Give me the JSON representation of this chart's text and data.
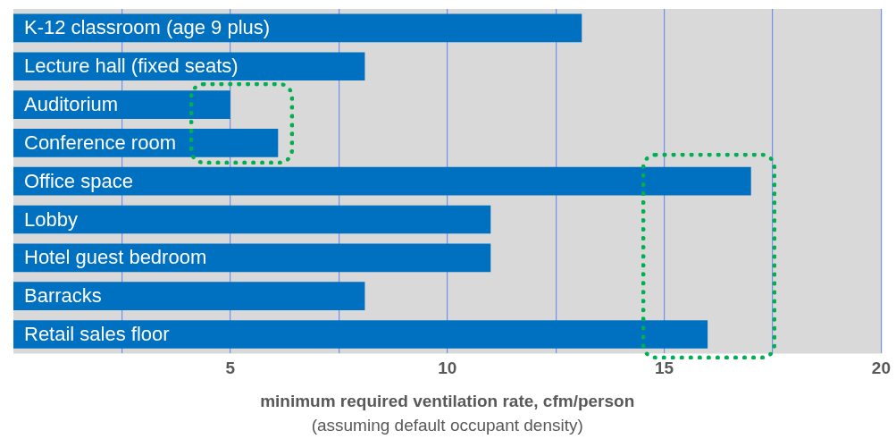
{
  "chart_data": {
    "type": "bar",
    "orientation": "horizontal",
    "categories": [
      "K-12 classroom (age 9 plus)",
      "Lecture hall (fixed seats)",
      "Auditorium",
      "Conference room",
      "Office space",
      "Lobby",
      "Hotel guest bedroom",
      "Barracks",
      "Retail sales floor"
    ],
    "values": [
      13.1,
      8.1,
      5.0,
      6.1,
      17,
      11,
      11,
      8.1,
      16
    ],
    "color": "#0070c0",
    "xlim": [
      0,
      20
    ],
    "xticks": [
      {
        "value": 2.5,
        "label": null
      },
      5,
      {
        "value": 7.5,
        "label": null
      },
      10,
      {
        "value": 12.5,
        "label": null
      },
      15,
      {
        "value": 17.5,
        "label": null
      },
      20
    ],
    "xlabel": "minimum required ventilation rate, cfm/person",
    "annotations": [
      "(assuming default occupant density)"
    ],
    "grid": "x",
    "legend": false
  }
}
